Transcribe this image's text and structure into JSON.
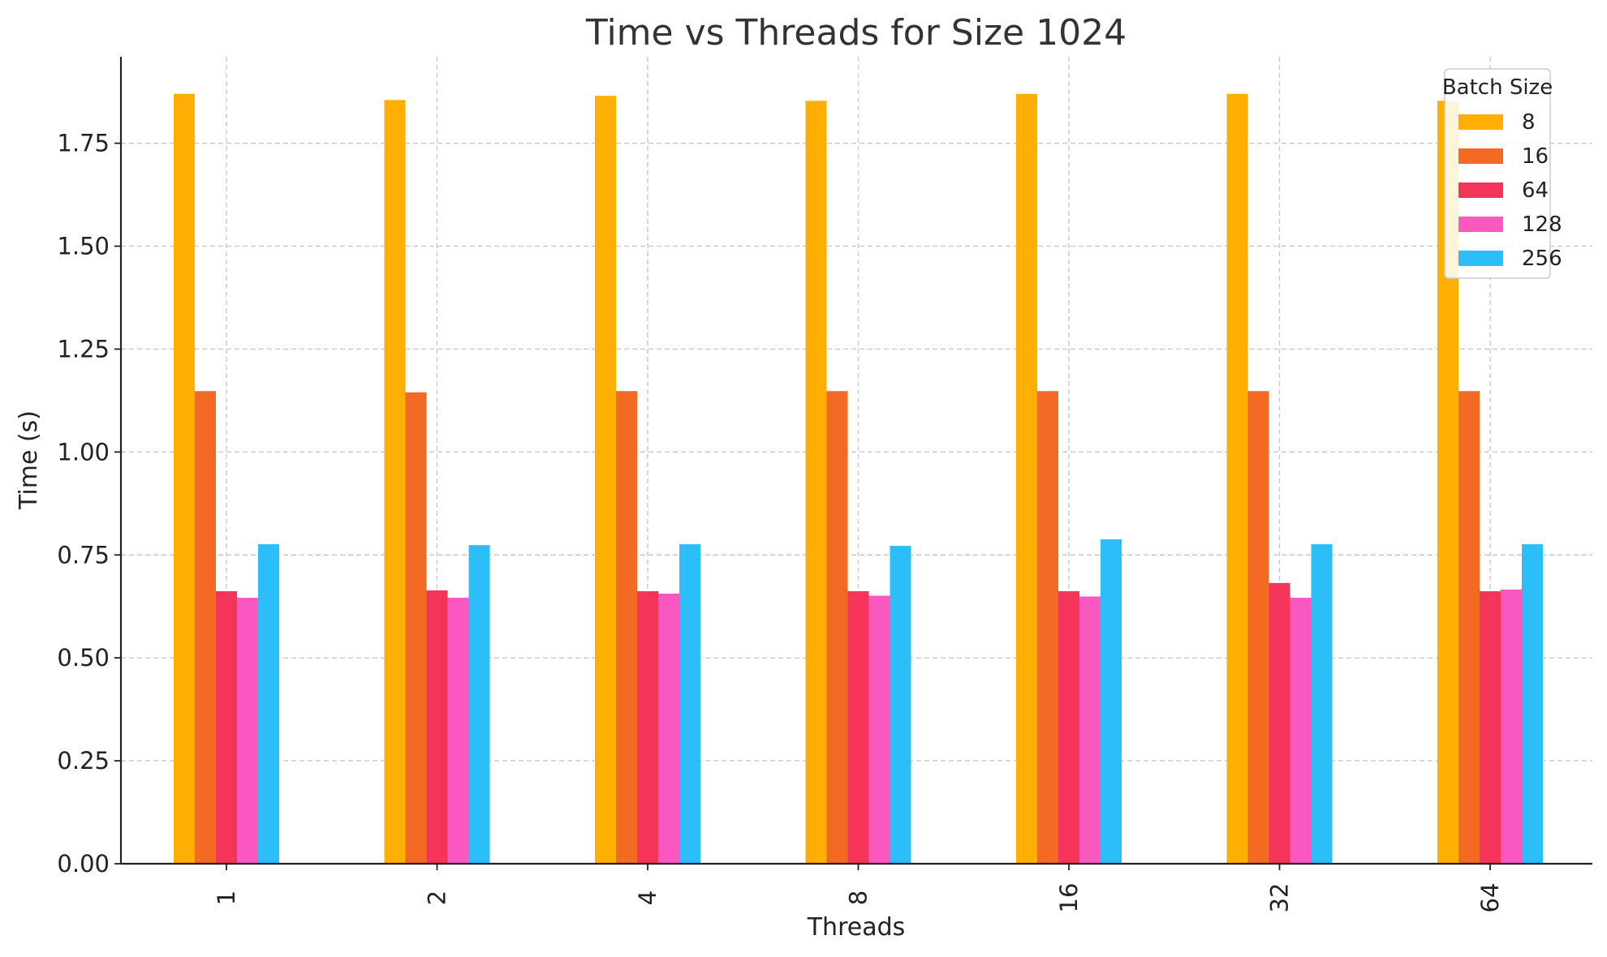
{
  "chart_data": {
    "type": "bar",
    "title": "Time vs Threads for Size 1024",
    "xlabel": "Threads",
    "ylabel": "Time (s)",
    "categories": [
      "1",
      "2",
      "4",
      "8",
      "16",
      "32",
      "64"
    ],
    "ylim": [
      0,
      1.96
    ],
    "yticks": [
      "0.00",
      "0.25",
      "0.50",
      "0.75",
      "1.00",
      "1.25",
      "1.50",
      "1.75"
    ],
    "grid": true,
    "legend": {
      "title": "Batch Size",
      "position": "top-right"
    },
    "series": [
      {
        "name": "8",
        "color": "#FFAE03",
        "values": [
          1.87,
          1.855,
          1.865,
          1.853,
          1.87,
          1.87,
          1.853
        ]
      },
      {
        "name": "16",
        "color": "#F26A23",
        "values": [
          1.148,
          1.145,
          1.148,
          1.148,
          1.148,
          1.148,
          1.148
        ]
      },
      {
        "name": "64",
        "color": "#F5345A",
        "values": [
          0.662,
          0.664,
          0.662,
          0.662,
          0.662,
          0.682,
          0.662
        ]
      },
      {
        "name": "128",
        "color": "#F858C0",
        "values": [
          0.646,
          0.646,
          0.656,
          0.651,
          0.649,
          0.646,
          0.666
        ]
      },
      {
        "name": "256",
        "color": "#2BBEF9",
        "values": [
          0.776,
          0.774,
          0.776,
          0.772,
          0.788,
          0.776,
          0.776
        ]
      }
    ]
  }
}
